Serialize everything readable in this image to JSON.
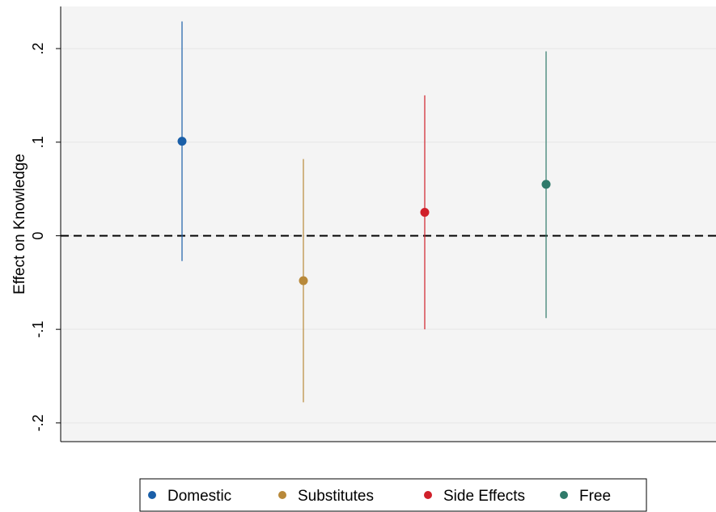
{
  "chart_data": {
    "type": "scatter",
    "title": "",
    "xlabel": "",
    "ylabel": "Effect on Knowledge",
    "ylim": [
      -0.22,
      0.245
    ],
    "yticks": [
      {
        "value": 0.2,
        "label": ".2"
      },
      {
        "value": 0.1,
        "label": ".1"
      },
      {
        "value": 0,
        "label": "0"
      },
      {
        "value": -0.1,
        "label": "-.1"
      },
      {
        "value": -0.2,
        "label": "-.2"
      }
    ],
    "grid": true,
    "reference_line": {
      "y": 0,
      "style": "dashed"
    },
    "legend_position": "bottom",
    "series": [
      {
        "name": "Domestic",
        "x": 1,
        "estimate": 0.101,
        "ci_low": -0.027,
        "ci_high": 0.229,
        "color": "#1a5fa8"
      },
      {
        "name": "Substitutes",
        "x": 2,
        "estimate": -0.048,
        "ci_low": -0.178,
        "ci_high": 0.082,
        "color": "#b8893a"
      },
      {
        "name": "Side Effects",
        "x": 3,
        "estimate": 0.025,
        "ci_low": -0.1,
        "ci_high": 0.15,
        "color": "#d0202a"
      },
      {
        "name": "Free",
        "x": 4,
        "estimate": 0.055,
        "ci_low": -0.088,
        "ci_high": 0.197,
        "color": "#2f7a6a"
      }
    ],
    "xlim": [
      0,
      5.4
    ]
  }
}
